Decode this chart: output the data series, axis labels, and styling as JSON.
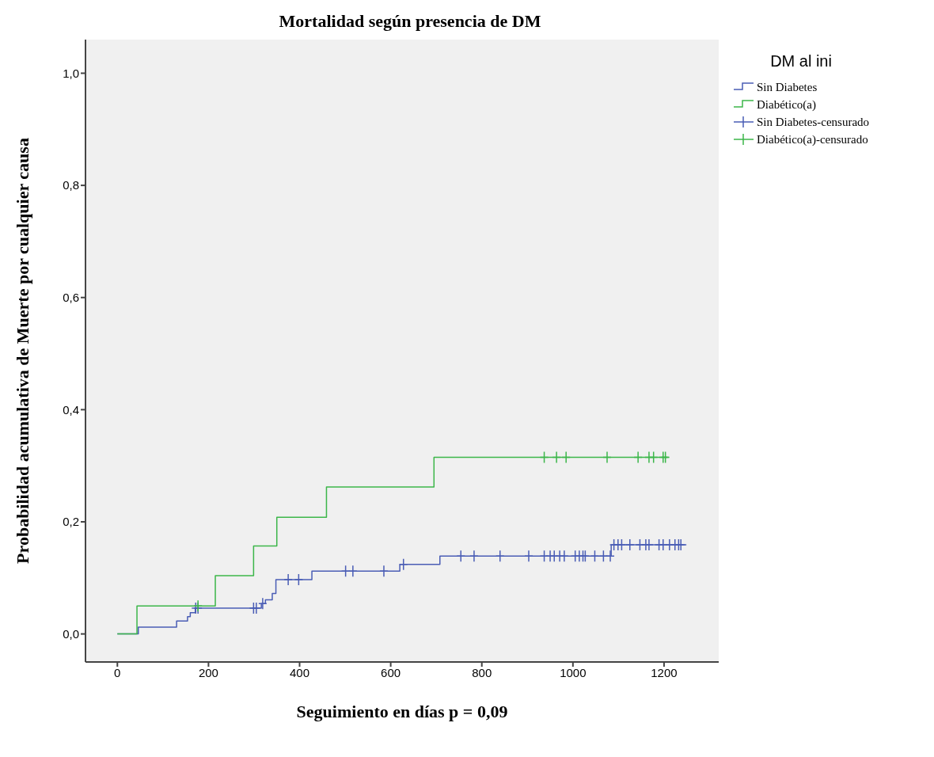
{
  "chart_data": {
    "type": "step",
    "title": "Mortalidad según presencia de DM",
    "xlabel": "Seguimiento en días p = 0,09",
    "ylabel": "Probabilidad acumulativa de Muerte por cualquier causa",
    "legend_title": "DM al ini",
    "legend": "right",
    "grid": false,
    "xlim": [
      -70,
      1320
    ],
    "xticks": [
      0,
      200,
      400,
      600,
      800,
      1000,
      1200
    ],
    "ylim": [
      -0.05,
      1.06
    ],
    "yticks": [
      {
        "value": 0,
        "label": "0,0"
      },
      {
        "value": 0.2,
        "label": "0,2"
      },
      {
        "value": 0.4,
        "label": "0,4"
      },
      {
        "value": 0.6,
        "label": "0,6"
      },
      {
        "value": 0.8,
        "label": "0,8"
      },
      {
        "value": 1,
        "label": "1,0"
      }
    ],
    "series": [
      {
        "name": "Sin Diabetes",
        "color": "#4a5db5",
        "x": [
          0,
          46,
          130,
          154,
          160,
          171,
          316,
          325,
          340,
          348,
          427,
          620,
          708,
          1084,
          1249
        ],
        "values": [
          0,
          0.012,
          0.023,
          0.031,
          0.038,
          0.046,
          0.054,
          0.061,
          0.072,
          0.097,
          0.112,
          0.124,
          0.139,
          0.159,
          0.159
        ]
      },
      {
        "name": "Diabético(a)",
        "color": "#3cb64a",
        "x": [
          0,
          43,
          215,
          299,
          350,
          459,
          695,
          1210
        ],
        "values": [
          0,
          0.05,
          0.104,
          0.157,
          0.208,
          0.262,
          0.315,
          0.315
        ]
      },
      {
        "name": "Sin Diabetes-censurado",
        "type": "scatter",
        "marker": "cross",
        "color": "#4a5db5",
        "x": [
          172,
          177,
          299,
          305,
          319,
          375,
          398,
          501,
          517,
          585,
          628,
          754,
          783,
          840,
          903,
          937,
          950,
          959,
          971,
          981,
          1005,
          1014,
          1022,
          1027,
          1048,
          1067,
          1082,
          1090,
          1099,
          1107,
          1125,
          1147,
          1160,
          1167,
          1189,
          1198,
          1212,
          1224,
          1232,
          1237
        ],
        "values": [
          0.046,
          0.046,
          0.046,
          0.046,
          0.054,
          0.097,
          0.097,
          0.112,
          0.112,
          0.112,
          0.124,
          0.139,
          0.139,
          0.139,
          0.139,
          0.139,
          0.139,
          0.139,
          0.139,
          0.139,
          0.139,
          0.139,
          0.139,
          0.139,
          0.139,
          0.139,
          0.139,
          0.159,
          0.159,
          0.159,
          0.159,
          0.159,
          0.159,
          0.159,
          0.159,
          0.159,
          0.159,
          0.159,
          0.159,
          0.159
        ]
      },
      {
        "name": "Diabético(a)-censurado",
        "type": "scatter",
        "marker": "cross",
        "color": "#3cb64a",
        "x": [
          177,
          937,
          964,
          985,
          1075,
          1143,
          1167,
          1177,
          1198,
          1203
        ],
        "values": [
          0.05,
          0.315,
          0.315,
          0.315,
          0.315,
          0.315,
          0.315,
          0.315,
          0.315,
          0.315
        ]
      }
    ]
  }
}
